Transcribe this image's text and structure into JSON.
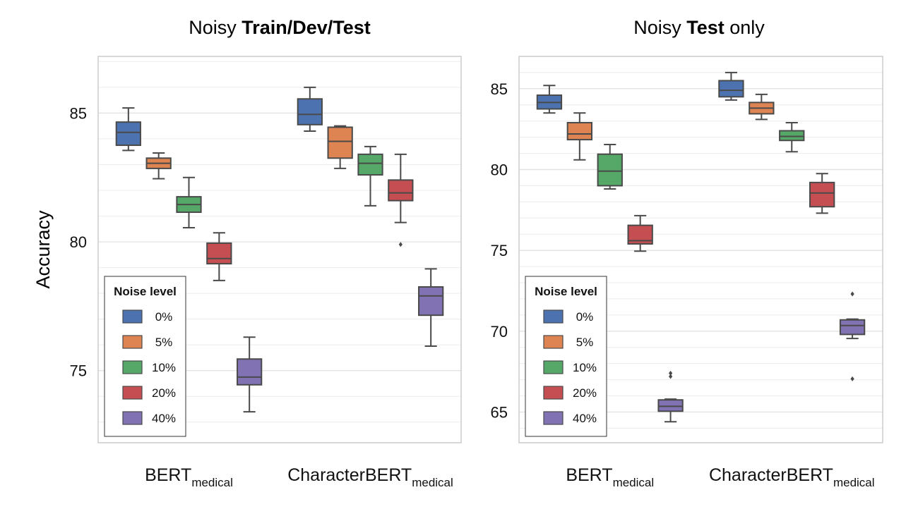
{
  "chart_data": {
    "type": "box",
    "ylabel": "Accuracy",
    "legend_title": "Noise level",
    "legend_placement": "bottom-left",
    "grid": true,
    "noise_levels": [
      "0%",
      "5%",
      "10%",
      "20%",
      "40%"
    ],
    "colors": [
      "#4c72b0",
      "#dd8452",
      "#55a868",
      "#c44e52",
      "#8172b3"
    ],
    "groups": [
      {
        "name": "BERT",
        "sub": "medical"
      },
      {
        "name": "CharacterBERT",
        "sub": "medical"
      }
    ],
    "panels": [
      {
        "title_plain": "Noisy ",
        "title_bold": "Train/Dev/Test",
        "title_tail": "",
        "ylim": [
          72.2,
          87.2
        ],
        "yticks": [
          75,
          80,
          85
        ],
        "show_ylabel": true,
        "boxes": [
          [
            {
              "whislo": 83.55,
              "q1": 83.75,
              "med": 84.25,
              "q3": 84.65,
              "whishi": 85.2,
              "fliers": []
            },
            {
              "whislo": 82.45,
              "q1": 82.85,
              "med": 83.05,
              "q3": 83.25,
              "whishi": 83.45,
              "fliers": []
            },
            {
              "whislo": 80.55,
              "q1": 81.15,
              "med": 81.45,
              "q3": 81.75,
              "whishi": 82.5,
              "fliers": []
            },
            {
              "whislo": 78.5,
              "q1": 79.15,
              "med": 79.35,
              "q3": 79.95,
              "whishi": 80.35,
              "fliers": []
            },
            {
              "whislo": 73.4,
              "q1": 74.45,
              "med": 74.75,
              "q3": 75.45,
              "whishi": 76.3,
              "fliers": []
            }
          ],
          [
            {
              "whislo": 84.3,
              "q1": 84.55,
              "med": 84.95,
              "q3": 85.55,
              "whishi": 86.0,
              "fliers": []
            },
            {
              "whislo": 82.85,
              "q1": 83.25,
              "med": 83.9,
              "q3": 84.45,
              "whishi": 84.5,
              "fliers": []
            },
            {
              "whislo": 81.4,
              "q1": 82.6,
              "med": 83.05,
              "q3": 83.4,
              "whishi": 83.7,
              "fliers": []
            },
            {
              "whislo": 80.75,
              "q1": 81.6,
              "med": 81.9,
              "q3": 82.4,
              "whishi": 83.4,
              "fliers": [
                79.9
              ]
            },
            {
              "whislo": 75.95,
              "q1": 77.15,
              "med": 77.9,
              "q3": 78.25,
              "whishi": 78.95,
              "fliers": []
            }
          ]
        ]
      },
      {
        "title_plain": "Noisy ",
        "title_bold": "Test",
        "title_tail": " only",
        "ylim": [
          63.1,
          87.0
        ],
        "yticks": [
          65,
          70,
          75,
          80,
          85
        ],
        "show_ylabel": false,
        "boxes": [
          [
            {
              "whislo": 83.5,
              "q1": 83.75,
              "med": 84.15,
              "q3": 84.6,
              "whishi": 85.2,
              "fliers": []
            },
            {
              "whislo": 80.6,
              "q1": 81.85,
              "med": 82.2,
              "q3": 82.9,
              "whishi": 83.5,
              "fliers": []
            },
            {
              "whislo": 78.8,
              "q1": 79.0,
              "med": 79.9,
              "q3": 80.95,
              "whishi": 81.55,
              "fliers": []
            },
            {
              "whislo": 74.95,
              "q1": 75.4,
              "med": 75.6,
              "q3": 76.55,
              "whishi": 77.15,
              "fliers": []
            },
            {
              "whislo": 64.4,
              "q1": 65.05,
              "med": 65.35,
              "q3": 65.75,
              "whishi": 65.8,
              "fliers": [
                67.2,
                67.4
              ]
            }
          ],
          [
            {
              "whislo": 84.3,
              "q1": 84.5,
              "med": 84.9,
              "q3": 85.5,
              "whishi": 86.0,
              "fliers": []
            },
            {
              "whislo": 83.1,
              "q1": 83.45,
              "med": 83.8,
              "q3": 84.15,
              "whishi": 84.65,
              "fliers": []
            },
            {
              "whislo": 81.1,
              "q1": 81.8,
              "med": 82.05,
              "q3": 82.4,
              "whishi": 82.9,
              "fliers": []
            },
            {
              "whislo": 77.3,
              "q1": 77.7,
              "med": 78.55,
              "q3": 79.2,
              "whishi": 79.75,
              "fliers": []
            },
            {
              "whislo": 69.55,
              "q1": 69.8,
              "med": 70.35,
              "q3": 70.7,
              "whishi": 70.75,
              "fliers": [
                72.3,
                67.05
              ]
            }
          ]
        ]
      }
    ]
  }
}
